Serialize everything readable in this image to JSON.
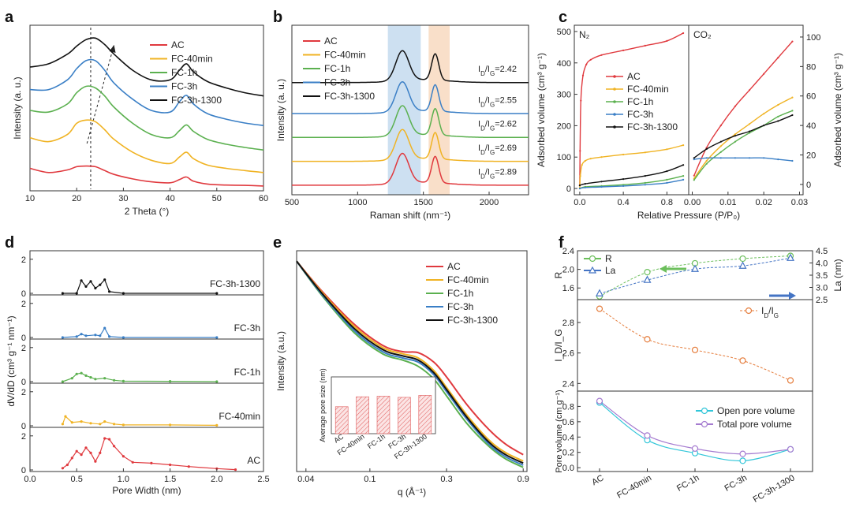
{
  "colors": {
    "AC": "#e0393e",
    "FC-40min": "#f0b323",
    "FC-1h": "#5bb04f",
    "FC-3h": "#3a7fc6",
    "FC-3h-1300": "#111111",
    "dband": "#bcd6ec",
    "gband": "#f7d7bb",
    "R": "#6cbf5c",
    "La": "#4474c4",
    "IDIG": "#e57c3b",
    "open": "#32c6d9",
    "total": "#a57bd0"
  },
  "chart_data": [
    {
      "panel": "a",
      "type": "line",
      "xlabel": "2 Theta (°)",
      "ylabel": "Intensity (a. u.)",
      "xlim": [
        10,
        60
      ],
      "xticks": [
        "10",
        "20",
        "30",
        "40",
        "50",
        "60"
      ],
      "legend": [
        "AC",
        "FC-40min",
        "FC-1h",
        "FC-3h",
        "FC-3h-1300"
      ],
      "series": [
        {
          "name": "AC",
          "x": [
            10,
            14,
            18,
            20,
            22,
            24,
            26,
            28,
            32,
            36,
            40,
            42,
            43.5,
            45,
            48,
            52,
            56,
            60
          ],
          "y": [
            0.55,
            0.42,
            0.5,
            0.6,
            0.62,
            0.6,
            0.48,
            0.36,
            0.22,
            0.13,
            0.1,
            0.2,
            0.28,
            0.15,
            0.06,
            0.03,
            0.02,
            0.0
          ]
        },
        {
          "name": "FC-40min",
          "x": [
            10,
            14,
            18,
            20,
            22,
            24,
            26,
            28,
            32,
            36,
            40,
            42,
            43.5,
            45,
            48,
            52,
            56,
            60
          ],
          "y": [
            1.5,
            1.38,
            1.6,
            1.95,
            2.05,
            2.0,
            1.75,
            1.45,
            1.05,
            0.8,
            0.7,
            0.9,
            1.05,
            0.85,
            0.65,
            0.55,
            0.48,
            0.42
          ]
        },
        {
          "name": "FC-1h",
          "x": [
            10,
            14,
            18,
            20,
            22,
            24,
            26,
            28,
            32,
            36,
            40,
            42,
            43.5,
            45,
            48,
            52,
            56,
            60
          ],
          "y": [
            2.35,
            2.3,
            2.55,
            2.9,
            3.1,
            3.05,
            2.8,
            2.45,
            1.95,
            1.6,
            1.5,
            1.72,
            1.9,
            1.7,
            1.45,
            1.3,
            1.2,
            1.12
          ]
        },
        {
          "name": "FC-3h",
          "x": [
            10,
            14,
            18,
            20,
            22,
            24,
            26,
            28,
            32,
            36,
            40,
            42,
            43.5,
            45,
            48,
            52,
            56,
            60
          ],
          "y": [
            3.0,
            3.0,
            3.3,
            3.65,
            3.9,
            3.9,
            3.6,
            3.2,
            2.7,
            2.35,
            2.3,
            2.62,
            2.82,
            2.55,
            2.25,
            2.08,
            1.96,
            1.88
          ]
        },
        {
          "name": "FC-3h-1300",
          "x": [
            10,
            14,
            18,
            20,
            22,
            24,
            26,
            28,
            32,
            36,
            40,
            42,
            43.5,
            45,
            48,
            52,
            56,
            60
          ],
          "y": [
            3.7,
            3.8,
            4.1,
            4.35,
            4.55,
            4.6,
            4.4,
            4.1,
            3.6,
            3.3,
            3.3,
            3.6,
            3.8,
            3.55,
            3.25,
            3.05,
            2.9,
            2.8
          ]
        }
      ],
      "annotation": "dashed line at 2θ ≈ 23° with arrow shifting right"
    },
    {
      "panel": "b",
      "type": "line",
      "xlabel": "Raman shift (nm⁻¹)",
      "ylabel": "Intensity (a. u.)",
      "xlim": [
        500,
        2300
      ],
      "xticks": [
        "500",
        "1000",
        "1500",
        "2000"
      ],
      "bands": [
        [
          1230,
          1480
        ],
        [
          1540,
          1700
        ]
      ],
      "legend": [
        "AC",
        "FC-40min",
        "FC-1h",
        "FC-3h",
        "FC-3h-1300"
      ],
      "ratios": [
        {
          "series": "FC-3h-1300",
          "pre": "I",
          "sub1": "D",
          "mid": "/I",
          "sub2": "G",
          "val": "=2.42"
        },
        {
          "series": "FC-3h",
          "pre": "I",
          "sub1": "D",
          "mid": "/I",
          "sub2": "G",
          "val": "=2.55"
        },
        {
          "series": "FC-1h",
          "pre": "I",
          "sub1": "D",
          "mid": "/I",
          "sub2": "G",
          "val": "=2.62"
        },
        {
          "series": "FC-40min",
          "pre": "I",
          "sub1": "D",
          "mid": "/I",
          "sub2": "G",
          "val": "=2.69"
        },
        {
          "series": "AC",
          "pre": "I",
          "sub1": "D",
          "mid": "/I",
          "sub2": "G",
          "val": "=2.89"
        }
      ],
      "peaks": {
        "D": 1340,
        "G": 1590
      },
      "offsets": {
        "AC": 0,
        "FC-40min": 1,
        "FC-1h": 2,
        "FC-3h": 3,
        "FC-3h-1300": 4.3
      }
    },
    {
      "panel": "c",
      "type": "line",
      "xlabel": "Relative Pressure (P/P₀)",
      "ylabel_left": "Adsorbed volume (cm³ g⁻¹)",
      "ylabel_right": "Adsorbed volume (cm³ g⁻¹)",
      "left_label": "N₂",
      "right_label": "CO₂",
      "left_xlim": [
        -0.05,
        1.0
      ],
      "left_xticks": [
        "0.0",
        "0.4",
        "0.8"
      ],
      "left_ylim": [
        -20,
        520
      ],
      "left_yticks": [
        "0",
        "100",
        "200",
        "300",
        "400",
        "500"
      ],
      "right_xlim": [
        -0.001,
        0.031
      ],
      "right_xticks": [
        "0.00",
        "0.01",
        "0.02",
        "0.03"
      ],
      "right_ylim": [
        -7,
        108
      ],
      "right_yticks": [
        "0",
        "20",
        "40",
        "60",
        "80",
        "100"
      ],
      "legend": [
        "AC",
        "FC-40min",
        "FC-1h",
        "FC-3h",
        "FC-3h-1300"
      ],
      "series_n2": [
        {
          "name": "AC",
          "x": [
            0,
            0.003,
            0.01,
            0.03,
            0.06,
            0.1,
            0.2,
            0.4,
            0.6,
            0.8,
            0.95
          ],
          "y": [
            10,
            120,
            280,
            360,
            395,
            410,
            425,
            440,
            455,
            470,
            495
          ]
        },
        {
          "name": "FC-40min",
          "x": [
            0,
            0.005,
            0.02,
            0.05,
            0.1,
            0.2,
            0.4,
            0.6,
            0.8,
            0.95
          ],
          "y": [
            0,
            40,
            75,
            88,
            95,
            100,
            108,
            115,
            125,
            138
          ]
        },
        {
          "name": "FC-1h",
          "x": [
            0,
            0.05,
            0.2,
            0.4,
            0.6,
            0.8,
            0.95
          ],
          "y": [
            0,
            5,
            8,
            12,
            18,
            28,
            40
          ]
        },
        {
          "name": "FC-3h",
          "x": [
            0,
            0.05,
            0.2,
            0.4,
            0.6,
            0.8,
            0.95
          ],
          "y": [
            0,
            3,
            5,
            8,
            12,
            18,
            28
          ]
        },
        {
          "name": "FC-3h-1300",
          "x": [
            0,
            0.05,
            0.2,
            0.4,
            0.6,
            0.8,
            0.95
          ],
          "y": [
            10,
            15,
            22,
            30,
            40,
            55,
            75
          ]
        }
      ],
      "series_co2": [
        {
          "name": "AC",
          "x": [
            0.0005,
            0.004,
            0.008,
            0.012,
            0.016,
            0.02,
            0.024,
            0.028
          ],
          "y": [
            6,
            25,
            40,
            53,
            64,
            75,
            86,
            97
          ]
        },
        {
          "name": "FC-40min",
          "x": [
            0.0005,
            0.004,
            0.008,
            0.012,
            0.016,
            0.02,
            0.024,
            0.028
          ],
          "y": [
            4,
            16,
            26,
            34,
            41,
            48,
            54,
            59
          ]
        },
        {
          "name": "FC-1h",
          "x": [
            0.0005,
            0.004,
            0.008,
            0.012,
            0.016,
            0.02,
            0.024,
            0.028
          ],
          "y": [
            3,
            14,
            22,
            29,
            35,
            40,
            46,
            50
          ]
        },
        {
          "name": "FC-3h",
          "x": [
            0.0005,
            0.004,
            0.008,
            0.012,
            0.016,
            0.02,
            0.024,
            0.028
          ],
          "y": [
            17,
            18,
            18,
            18,
            18,
            18,
            17,
            16
          ]
        },
        {
          "name": "FC-3h-1300",
          "x": [
            0.0005,
            0.004,
            0.008,
            0.012,
            0.016,
            0.02,
            0.024,
            0.028
          ],
          "y": [
            18,
            24,
            29,
            33,
            36,
            40,
            43,
            47
          ]
        }
      ]
    },
    {
      "panel": "d",
      "type": "line",
      "xlabel": "Pore Width (nm)",
      "ylabel": "dV/dD (cm³ g⁻¹ nm⁻¹)",
      "xlim": [
        0,
        2.5
      ],
      "xticks": [
        "0.0",
        "0.5",
        "1.0",
        "1.5",
        "2.0",
        "2.5"
      ],
      "subplot_yticks": [
        "0",
        "2"
      ],
      "subplots": [
        {
          "name": "FC-3h-1300",
          "x": [
            0.35,
            0.5,
            0.55,
            0.6,
            0.65,
            0.7,
            0.75,
            0.8,
            0.85,
            1.0,
            2.0
          ],
          "y": [
            0,
            0,
            0.75,
            0.4,
            0.7,
            0.3,
            0.5,
            0.8,
            0.1,
            0,
            0
          ]
        },
        {
          "name": "FC-3h",
          "x": [
            0.35,
            0.5,
            0.55,
            0.6,
            0.7,
            0.75,
            0.8,
            0.85,
            1.0,
            2.0
          ],
          "y": [
            0,
            0.05,
            0.2,
            0.1,
            0.15,
            0.1,
            0.55,
            0.05,
            0,
            0
          ]
        },
        {
          "name": "FC-1h",
          "x": [
            0.35,
            0.45,
            0.5,
            0.55,
            0.6,
            0.65,
            0.7,
            0.8,
            0.9,
            1.0,
            1.5,
            2.0
          ],
          "y": [
            0,
            0.2,
            0.45,
            0.5,
            0.35,
            0.25,
            0.15,
            0.2,
            0.08,
            0.03,
            0.02,
            0
          ]
        },
        {
          "name": "FC-40min",
          "x": [
            0.35,
            0.38,
            0.45,
            0.55,
            0.65,
            0.75,
            0.8,
            0.9,
            1.0,
            1.5,
            2.0
          ],
          "y": [
            0.1,
            0.55,
            0.2,
            0.25,
            0.15,
            0.1,
            0.25,
            0.1,
            0.05,
            0.05,
            0.03
          ]
        },
        {
          "name": "AC",
          "x": [
            0.35,
            0.4,
            0.45,
            0.5,
            0.55,
            0.6,
            0.65,
            0.7,
            0.75,
            0.8,
            0.85,
            0.9,
            1.0,
            1.1,
            1.3,
            1.5,
            1.7,
            2.0,
            2.2
          ],
          "y": [
            0.1,
            0.3,
            0.7,
            1.1,
            0.9,
            1.3,
            1.0,
            0.5,
            1.0,
            1.85,
            1.8,
            1.4,
            0.8,
            0.45,
            0.4,
            0.3,
            0.2,
            0.08,
            0.02
          ]
        }
      ]
    },
    {
      "panel": "e",
      "type": "line",
      "xlabel": "q (Å⁻¹)",
      "ylabel": "Intensity (a.u.)",
      "xscale": "log",
      "xlim": [
        0.035,
        0.95
      ],
      "xticks": [
        "0.04",
        "0.1",
        "0.3",
        "0.9"
      ],
      "legend": [
        "AC",
        "FC-40min",
        "FC-1h",
        "FC-3h",
        "FC-3h-1300"
      ],
      "series": [
        {
          "name": "AC",
          "x": [
            0.035,
            0.05,
            0.08,
            0.12,
            0.16,
            0.2,
            0.25,
            0.3,
            0.4,
            0.55,
            0.7,
            0.9
          ],
          "y": [
            1.0,
            0.86,
            0.7,
            0.6,
            0.57,
            0.565,
            0.52,
            0.45,
            0.32,
            0.2,
            0.13,
            0.08
          ]
        },
        {
          "name": "FC-40min",
          "x": [
            0.035,
            0.05,
            0.08,
            0.12,
            0.16,
            0.2,
            0.25,
            0.3,
            0.4,
            0.55,
            0.7,
            0.9
          ],
          "y": [
            1.0,
            0.855,
            0.69,
            0.59,
            0.56,
            0.54,
            0.48,
            0.4,
            0.27,
            0.15,
            0.09,
            0.05
          ]
        },
        {
          "name": "FC-1h",
          "x": [
            0.035,
            0.05,
            0.08,
            0.12,
            0.16,
            0.2,
            0.25,
            0.3,
            0.4,
            0.55,
            0.7,
            0.9
          ],
          "y": [
            1.0,
            0.84,
            0.66,
            0.56,
            0.53,
            0.5,
            0.44,
            0.36,
            0.23,
            0.12,
            0.06,
            0.02
          ]
        },
        {
          "name": "FC-3h",
          "x": [
            0.035,
            0.05,
            0.08,
            0.12,
            0.16,
            0.2,
            0.25,
            0.3,
            0.4,
            0.55,
            0.7,
            0.9
          ],
          "y": [
            1.0,
            0.845,
            0.67,
            0.57,
            0.54,
            0.52,
            0.46,
            0.38,
            0.25,
            0.13,
            0.07,
            0.03
          ]
        },
        {
          "name": "FC-3h-1300",
          "x": [
            0.035,
            0.05,
            0.08,
            0.12,
            0.16,
            0.2,
            0.25,
            0.3,
            0.4,
            0.55,
            0.7,
            0.9
          ],
          "y": [
            1.0,
            0.85,
            0.68,
            0.58,
            0.55,
            0.53,
            0.47,
            0.39,
            0.26,
            0.14,
            0.08,
            0.04
          ]
        }
      ],
      "inset": {
        "type": "bar",
        "ylabel": "Average pore size (nm)",
        "categories": [
          "AC",
          "FC-40min",
          "FC-1h",
          "FC-3h",
          "FC-3h-1300"
        ],
        "values": [
          0.95,
          1.3,
          1.32,
          1.28,
          1.35
        ],
        "ylim": [
          0,
          2.0
        ]
      }
    },
    {
      "panel": "f",
      "type": "line",
      "categories": [
        "AC",
        "FC-40min",
        "FC-1h",
        "FC-3h",
        "FC-3h-1300"
      ],
      "top": {
        "ylabel_left": "R",
        "ylabel_right": "La (nm)",
        "left_ylim": [
          1.35,
          2.4
        ],
        "left_yticks": [
          "1.6",
          "2.0",
          "2.4"
        ],
        "right_ylim": [
          2.5,
          4.5
        ],
        "right_yticks": [
          "2.5",
          "3.0",
          "3.5",
          "4.0",
          "4.5"
        ],
        "R": [
          1.42,
          1.94,
          2.13,
          2.23,
          2.29
        ],
        "La": [
          2.75,
          3.3,
          3.75,
          3.88,
          4.2
        ],
        "legend": [
          "R",
          "La"
        ]
      },
      "middle": {
        "ylabel": "I_D/I_G",
        "ylim": [
          2.35,
          2.95
        ],
        "yticks": [
          "2.4",
          "2.6",
          "2.8"
        ],
        "values": [
          2.89,
          2.69,
          2.62,
          2.55,
          2.42
        ],
        "legend_pre": "I",
        "legend_sub1": "D",
        "legend_mid": "/I",
        "legend_sub2": "G"
      },
      "bottom": {
        "ylabel": "Pore volume (cm g⁻¹)",
        "ylim": [
          -0.05,
          1.0
        ],
        "yticks": [
          "0.0",
          "0.2",
          "0.4",
          "0.6",
          "0.8"
        ],
        "open": [
          0.85,
          0.36,
          0.19,
          0.09,
          0.24
        ],
        "total": [
          0.87,
          0.42,
          0.25,
          0.18,
          0.24
        ],
        "legend": [
          "Open pore volume",
          "Total pore volume"
        ]
      }
    }
  ]
}
